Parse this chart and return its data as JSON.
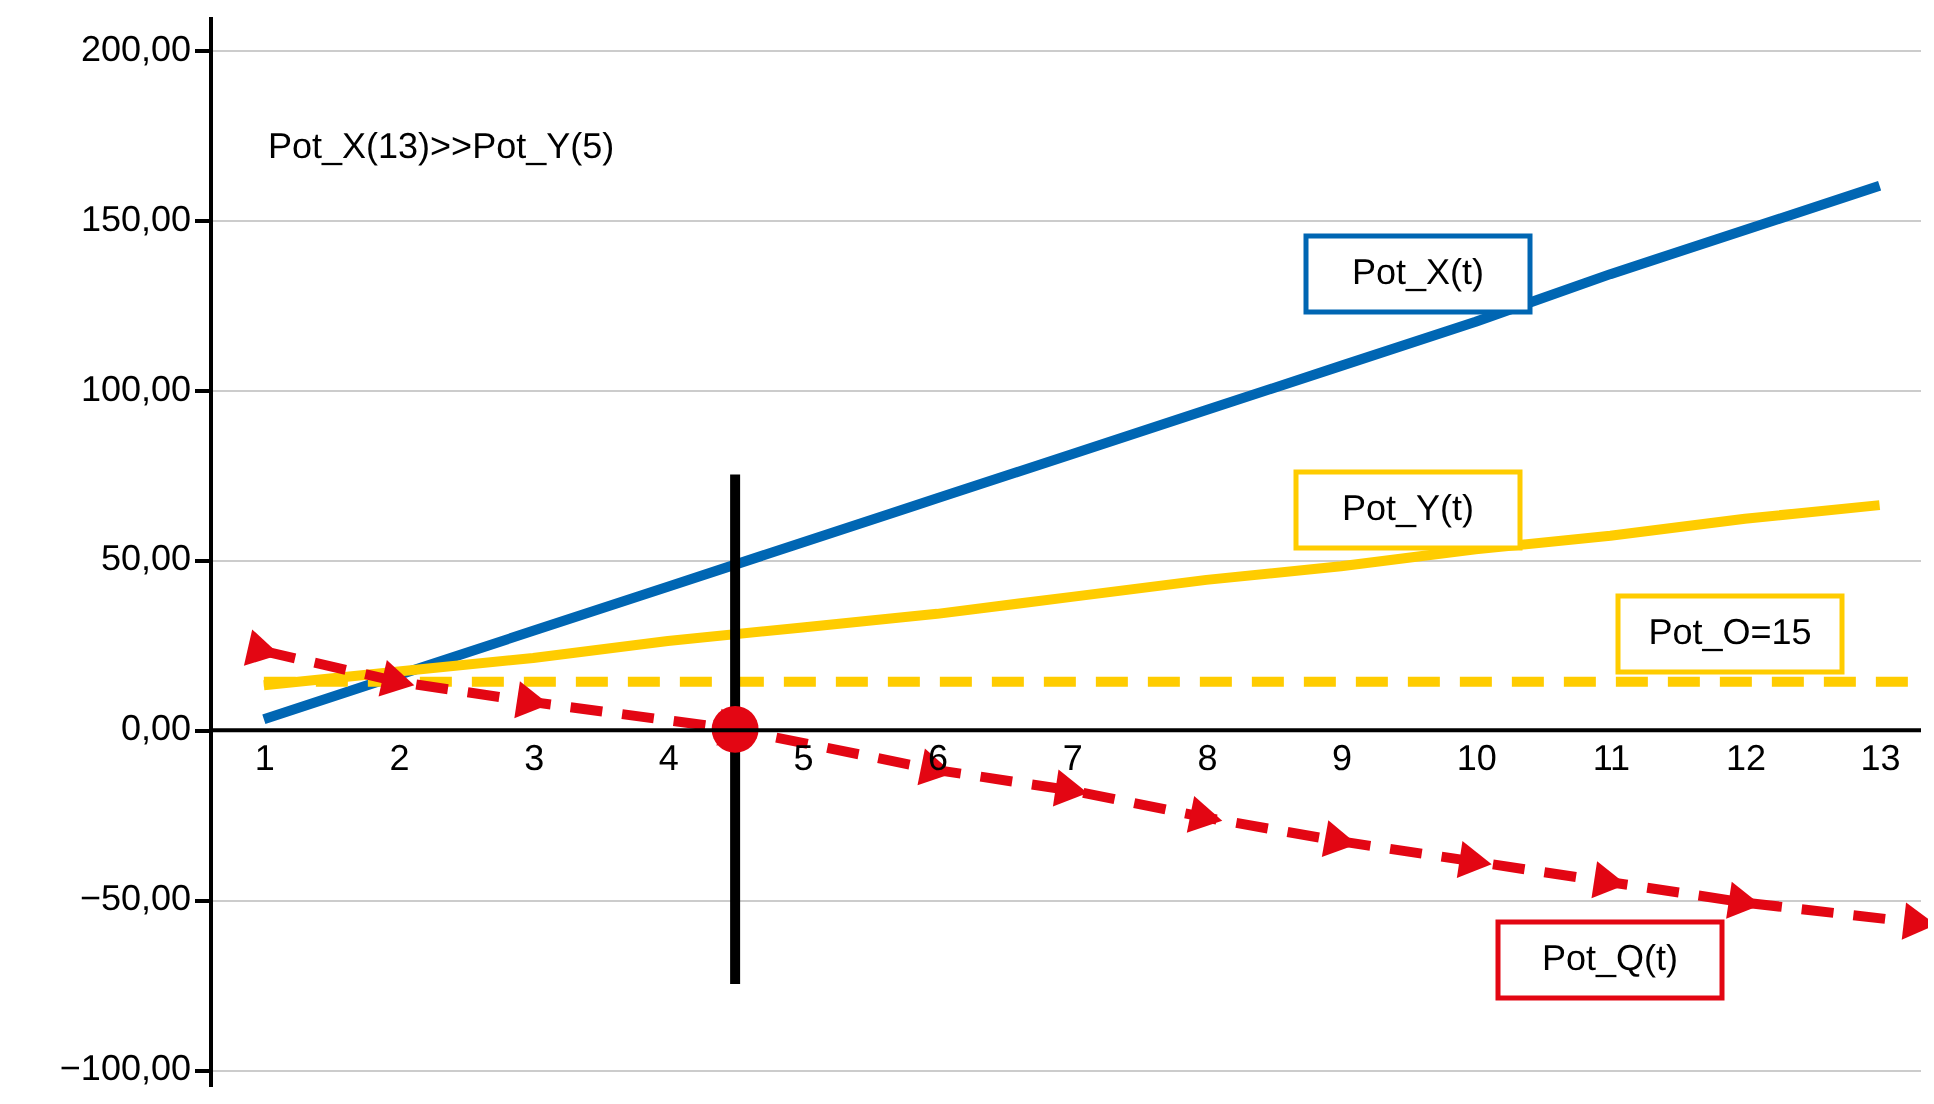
{
  "chart_data": {
    "type": "line",
    "annotations": [
      "Pot_X(13)>>Pot_Y(5)"
    ],
    "xlim": [
      0.6,
      13.3
    ],
    "xticks": [
      1,
      2,
      3,
      4,
      5,
      6,
      7,
      8,
      9,
      10,
      11,
      12,
      13
    ],
    "ylim": [
      -105,
      210
    ],
    "yticks": [
      {
        "value": -100,
        "label": "−100,00"
      },
      {
        "value": -50,
        "label": "−50,00"
      },
      {
        "value": 0,
        "label": "0,00"
      },
      {
        "value": 50,
        "label": "50,00"
      },
      {
        "value": 100,
        "label": "100,00"
      },
      {
        "value": 150,
        "label": "150,00"
      },
      {
        "value": 200,
        "label": "200,00"
      }
    ],
    "grid": "y",
    "series": [
      {
        "name": "Pot_X(t)",
        "color": "#0066b3",
        "line_style": "solid",
        "x": [
          1,
          2,
          3,
          4,
          5,
          6,
          7,
          8,
          9,
          10,
          11,
          12,
          13
        ],
        "values": [
          3,
          16,
          29,
          42,
          55,
          68,
          81,
          94,
          107,
          120,
          134,
          147,
          160
        ]
      },
      {
        "name": "Pot_Y(t)",
        "color": "#ffcc00",
        "line_style": "solid",
        "x": [
          1,
          2,
          3,
          4,
          5,
          6,
          7,
          8,
          9,
          10,
          11,
          12,
          13
        ],
        "values": [
          13,
          17,
          21,
          26,
          30,
          34,
          39,
          44,
          48,
          53,
          57,
          62,
          66
        ]
      },
      {
        "name": "Pot_O=15",
        "color": "#ffcc00",
        "line_style": "dashed",
        "x": [
          1,
          13.3
        ],
        "values": [
          14,
          14
        ]
      },
      {
        "name": "Pot_Q(t)",
        "color": "#e30613",
        "line_style": "dashed",
        "marker": "triangle",
        "x": [
          1,
          2,
          3,
          4.5,
          6,
          7,
          8,
          9,
          10,
          11,
          12,
          13.3
        ],
        "values": [
          23,
          14,
          8,
          0,
          -12,
          -18,
          -26,
          -33,
          -39,
          -45,
          -51,
          -57
        ]
      },
      {
        "color": "#000000",
        "line_style": "solid",
        "x": [
          4.5,
          4.5
        ],
        "values": [
          -75,
          75
        ]
      },
      {
        "type": "scatter",
        "color": "#e30613",
        "marker": "circle",
        "x": [
          4.5
        ],
        "values": [
          0
        ]
      }
    ]
  }
}
